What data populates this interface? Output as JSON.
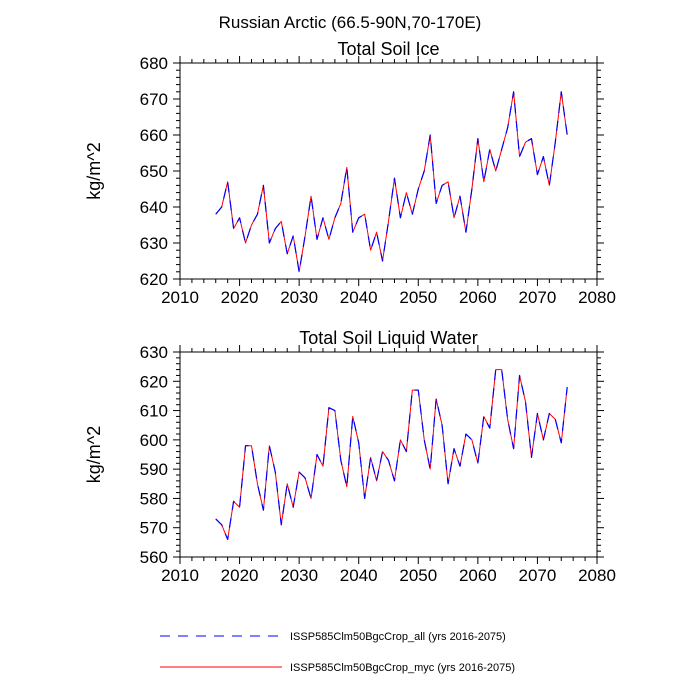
{
  "figure": {
    "title": "Russian Arctic (66.5-90N,70-170E)"
  },
  "colors": {
    "series_all": "#0000ff",
    "series_myc": "#ff0000",
    "axis": "#000000"
  },
  "chart_data": [
    {
      "type": "line",
      "title": "Total Soil Ice",
      "xlabel": "",
      "ylabel": "kg/m^2",
      "xlim": [
        2010,
        2080
      ],
      "ylim": [
        620,
        680
      ],
      "xticks": [
        2010,
        2020,
        2030,
        2040,
        2050,
        2060,
        2070,
        2080
      ],
      "yticks": [
        620,
        630,
        640,
        650,
        660,
        670,
        680
      ],
      "x": [
        2016,
        2017,
        2018,
        2019,
        2020,
        2021,
        2022,
        2023,
        2024,
        2025,
        2026,
        2027,
        2028,
        2029,
        2030,
        2031,
        2032,
        2033,
        2034,
        2035,
        2036,
        2037,
        2038,
        2039,
        2040,
        2041,
        2042,
        2043,
        2044,
        2045,
        2046,
        2047,
        2048,
        2049,
        2050,
        2051,
        2052,
        2053,
        2054,
        2055,
        2056,
        2057,
        2058,
        2059,
        2060,
        2061,
        2062,
        2063,
        2064,
        2065,
        2066,
        2067,
        2068,
        2069,
        2070,
        2071,
        2072,
        2073,
        2074,
        2075
      ],
      "series": [
        {
          "name": "ISSP585Clm50BgcCrop_all (yrs 2016-2075)",
          "values": [
            638,
            640,
            647,
            634,
            637,
            630,
            635,
            638,
            646,
            630,
            634,
            636,
            627,
            632,
            622,
            632,
            643,
            631,
            637,
            631,
            637,
            641,
            651,
            633,
            637,
            638,
            628,
            633,
            625,
            636,
            648,
            637,
            644,
            638,
            645,
            650,
            660,
            641,
            646,
            647,
            637,
            643,
            633,
            645,
            659,
            647,
            656,
            650,
            656,
            662,
            672,
            654,
            658,
            659,
            649,
            654,
            646,
            658,
            672,
            660
          ]
        },
        {
          "name": "ISSP585Clm50BgcCrop_myc (yrs 2016-2075)",
          "values": [
            638,
            640,
            647,
            634,
            637,
            630,
            635,
            638,
            646,
            630,
            634,
            636,
            627,
            632,
            622,
            632,
            643,
            631,
            637,
            631,
            637,
            641,
            651,
            633,
            637,
            638,
            628,
            633,
            625,
            636,
            648,
            637,
            644,
            638,
            645,
            650,
            660,
            641,
            646,
            647,
            637,
            643,
            633,
            645,
            659,
            647,
            656,
            650,
            656,
            662,
            672,
            654,
            658,
            659,
            649,
            654,
            646,
            658,
            672,
            660
          ]
        }
      ]
    },
    {
      "type": "line",
      "title": "Total Soil Liquid Water",
      "xlabel": "",
      "ylabel": "kg/m^2",
      "xlim": [
        2010,
        2080
      ],
      "ylim": [
        560,
        630
      ],
      "xticks": [
        2010,
        2020,
        2030,
        2040,
        2050,
        2060,
        2070,
        2080
      ],
      "yticks": [
        560,
        570,
        580,
        590,
        600,
        610,
        620,
        630
      ],
      "x": [
        2016,
        2017,
        2018,
        2019,
        2020,
        2021,
        2022,
        2023,
        2024,
        2025,
        2026,
        2027,
        2028,
        2029,
        2030,
        2031,
        2032,
        2033,
        2034,
        2035,
        2036,
        2037,
        2038,
        2039,
        2040,
        2041,
        2042,
        2043,
        2044,
        2045,
        2046,
        2047,
        2048,
        2049,
        2050,
        2051,
        2052,
        2053,
        2054,
        2055,
        2056,
        2057,
        2058,
        2059,
        2060,
        2061,
        2062,
        2063,
        2064,
        2065,
        2066,
        2067,
        2068,
        2069,
        2070,
        2071,
        2072,
        2073,
        2074,
        2075
      ],
      "series": [
        {
          "name": "ISSP585Clm50BgcCrop_all (yrs 2016-2075)",
          "values": [
            573,
            571,
            566,
            579,
            577,
            598,
            598,
            585,
            576,
            598,
            589,
            571,
            585,
            577,
            589,
            587,
            580,
            595,
            591,
            611,
            610,
            593,
            584,
            608,
            599,
            580,
            594,
            586,
            596,
            593,
            586,
            600,
            596,
            617,
            617,
            600,
            590,
            614,
            605,
            585,
            597,
            591,
            602,
            600,
            592,
            608,
            604,
            624,
            624,
            607,
            597,
            622,
            613,
            594,
            609,
            600,
            609,
            607,
            599,
            618
          ]
        },
        {
          "name": "ISSP585Clm50BgcCrop_myc (yrs 2016-2075)",
          "values": [
            573,
            571,
            566,
            579,
            577,
            598,
            598,
            585,
            576,
            598,
            589,
            571,
            585,
            577,
            589,
            587,
            580,
            595,
            591,
            611,
            610,
            593,
            584,
            608,
            599,
            580,
            594,
            586,
            596,
            593,
            586,
            600,
            596,
            617,
            617,
            600,
            590,
            614,
            605,
            585,
            597,
            591,
            602,
            600,
            592,
            608,
            604,
            624,
            624,
            607,
            597,
            622,
            613,
            594,
            609,
            600,
            609,
            607,
            599,
            618
          ]
        }
      ]
    }
  ],
  "legend": {
    "placement": "bottom",
    "items": [
      {
        "label": "ISSP585Clm50BgcCrop_all (yrs 2016-2075)",
        "style": "dashed",
        "color": "#0000ff"
      },
      {
        "label": "ISSP585Clm50BgcCrop_myc (yrs 2016-2075)",
        "style": "solid",
        "color": "#ff0000"
      }
    ]
  }
}
